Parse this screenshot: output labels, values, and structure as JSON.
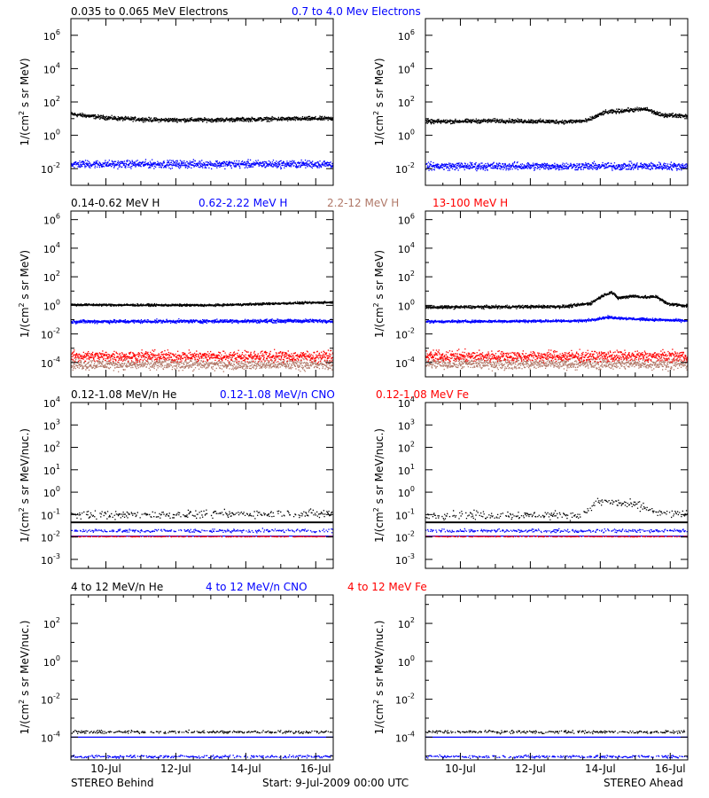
{
  "colors": {
    "black": "#000000",
    "blue": "#0000ff",
    "tan": "#b07868",
    "red": "#ff0000"
  },
  "row_titles": [
    [
      {
        "text": "0.035 to 0.065 MeV Electrons",
        "color": "black"
      },
      {
        "text": "0.7 to 4.0 Mev Electrons",
        "color": "blue"
      }
    ],
    [
      {
        "text": "0.14-0.62 MeV H",
        "color": "black"
      },
      {
        "text": "0.62-2.22 MeV H",
        "color": "blue"
      },
      {
        "text": "2.2-12 MeV H",
        "color": "tan"
      },
      {
        "text": "13-100 MeV H",
        "color": "red"
      }
    ],
    [
      {
        "text": "0.12-1.08 MeV/n He",
        "color": "black"
      },
      {
        "text": "0.12-1.08 MeV/n CNO",
        "color": "blue"
      },
      {
        "text": "0.12-1.08 MeV Fe",
        "color": "red"
      }
    ],
    [
      {
        "text": "4 to 12 MeV/n He",
        "color": "black"
      },
      {
        "text": "4 to 12 MeV/n CNO",
        "color": "blue"
      },
      {
        "text": "4 to 12 MeV Fe",
        "color": "red"
      }
    ]
  ],
  "footer": {
    "left": "STEREO Behind",
    "center": "Start:  9-Jul-2009 00:00 UTC",
    "right": "STEREO Ahead"
  },
  "chart_data": [
    {
      "type": "scatter",
      "panel": "row1-left",
      "ylabel": "1/(cm2 s sr MeV)",
      "ylog": true,
      "ylim_exp": [
        -3,
        7
      ],
      "ytick_exps": [
        -2,
        0,
        2,
        4,
        6
      ],
      "xlim_days": [
        0,
        7.5
      ],
      "x_ticks": [
        "10-Jul",
        "12-Jul",
        "14-Jul",
        "16-Jul"
      ],
      "series": [
        {
          "name": "0.035 to 0.065 MeV Electrons",
          "color": "black",
          "profile": [
            [
              0,
              20
            ],
            [
              0.7,
              14
            ],
            [
              1.3,
              11
            ],
            [
              2.5,
              9
            ],
            [
              4,
              9
            ],
            [
              5.5,
              10
            ],
            [
              7.5,
              11
            ]
          ],
          "scatter": 0.08
        },
        {
          "name": "0.7 to 4.0 Mev Electrons",
          "color": "blue",
          "profile": [
            [
              0,
              0.02
            ],
            [
              7.5,
              0.02
            ]
          ],
          "scatter": 0.15
        }
      ]
    },
    {
      "type": "scatter",
      "panel": "row1-right",
      "ylabel": "1/(cm2 s sr MeV)",
      "ylog": true,
      "ylim_exp": [
        -3,
        7
      ],
      "ytick_exps": [
        -2,
        0,
        2,
        4,
        6
      ],
      "xlim_days": [
        0,
        7.5
      ],
      "x_ticks": [
        "10-Jul",
        "12-Jul",
        "14-Jul",
        "16-Jul"
      ],
      "series": [
        {
          "name": "0.035 to 0.065 MeV Electrons",
          "color": "black",
          "profile": [
            [
              0,
              7
            ],
            [
              2,
              8
            ],
            [
              4,
              7
            ],
            [
              4.6,
              8
            ],
            [
              5.1,
              25
            ],
            [
              5.8,
              35
            ],
            [
              6.3,
              40
            ],
            [
              6.7,
              18
            ],
            [
              7.5,
              16
            ]
          ],
          "scatter": 0.08
        },
        {
          "name": "0.7 to 4.0 Mev Electrons",
          "color": "blue",
          "profile": [
            [
              0,
              0.015
            ],
            [
              7.5,
              0.015
            ]
          ],
          "scatter": 0.15
        }
      ]
    },
    {
      "type": "scatter",
      "panel": "row2-left",
      "ylabel": "1/(cm2 s sr MeV)",
      "ylog": true,
      "ylim_exp": [
        -5,
        6.6
      ],
      "ytick_exps": [
        -4,
        -2,
        0,
        2,
        4,
        6
      ],
      "xlim_days": [
        0,
        7.5
      ],
      "x_ticks": [
        "10-Jul",
        "12-Jul",
        "14-Jul",
        "16-Jul"
      ],
      "series": [
        {
          "name": "0.14-0.62 MeV H",
          "color": "black",
          "profile": [
            [
              0,
              1.2
            ],
            [
              4,
              1.1
            ],
            [
              6,
              1.5
            ],
            [
              7.5,
              1.8
            ]
          ],
          "scatter": 0.05
        },
        {
          "name": "0.62-2.22 MeV H",
          "color": "blue",
          "profile": [
            [
              0,
              0.08
            ],
            [
              7.5,
              0.09
            ]
          ],
          "scatter": 0.08
        },
        {
          "name": "2.2-12 MeV H",
          "color": "tan",
          "profile": [
            [
              0,
              8e-05
            ],
            [
              7.5,
              8e-05
            ]
          ],
          "scatter": 0.25
        },
        {
          "name": "13-100 MeV H",
          "color": "red",
          "profile": [
            [
              0,
              0.0003
            ],
            [
              7.5,
              0.0003
            ]
          ],
          "scatter": 0.25
        }
      ]
    },
    {
      "type": "scatter",
      "panel": "row2-right",
      "ylabel": "1/(cm2 s sr MeV)",
      "ylog": true,
      "ylim_exp": [
        -5,
        6.6
      ],
      "ytick_exps": [
        -4,
        -2,
        0,
        2,
        4,
        6
      ],
      "xlim_days": [
        0,
        7.5
      ],
      "x_ticks": [
        "10-Jul",
        "12-Jul",
        "14-Jul",
        "16-Jul"
      ],
      "series": [
        {
          "name": "0.14-0.62 MeV H",
          "color": "black",
          "profile": [
            [
              0,
              0.8
            ],
            [
              4,
              0.9
            ],
            [
              4.7,
              1.5
            ],
            [
              5.1,
              6
            ],
            [
              5.3,
              9
            ],
            [
              5.5,
              3.5
            ],
            [
              5.9,
              5
            ],
            [
              6.3,
              4
            ],
            [
              6.6,
              4.5
            ],
            [
              6.9,
              1.4
            ],
            [
              7.5,
              1
            ]
          ],
          "scatter": 0.07
        },
        {
          "name": "0.62-2.22 MeV H",
          "color": "blue",
          "profile": [
            [
              0,
              0.08
            ],
            [
              4.5,
              0.09
            ],
            [
              5.2,
              0.16
            ],
            [
              6,
              0.12
            ],
            [
              7.5,
              0.09
            ]
          ],
          "scatter": 0.06
        },
        {
          "name": "2.2-12 MeV H",
          "color": "tan",
          "profile": [
            [
              0,
              9e-05
            ],
            [
              7.5,
              9e-05
            ]
          ],
          "scatter": 0.25
        },
        {
          "name": "13-100 MeV H",
          "color": "red",
          "profile": [
            [
              0,
              0.0003
            ],
            [
              7.5,
              0.0003
            ]
          ],
          "scatter": 0.25
        }
      ]
    },
    {
      "type": "scatter",
      "panel": "row3-left",
      "ylabel": "1/(cm2 s sr MeV/nuc.)",
      "ylog": true,
      "ylim_exp": [
        -3.4,
        4
      ],
      "ytick_exps": [
        -3,
        -2,
        -1,
        0,
        1,
        2,
        3,
        4
      ],
      "xlim_days": [
        0,
        7.5
      ],
      "x_ticks": [
        "10-Jul",
        "12-Jul",
        "14-Jul",
        "16-Jul"
      ],
      "series": [
        {
          "name": "0.12-1.08 MeV/n He",
          "color": "black",
          "profile": [
            [
              0,
              0.1
            ],
            [
              7.5,
              0.12
            ]
          ],
          "scatter": 0.12,
          "sparse": true,
          "floor": 0.045
        },
        {
          "name": "0.12-1.08 MeV/n CNO",
          "color": "blue",
          "profile": [
            [
              0,
              0.02
            ],
            [
              7.5,
              0.02
            ]
          ],
          "scatter": 0.05,
          "sparse": true,
          "floor": 0.011
        },
        {
          "name": "0.12-1.08 MeV Fe",
          "color": "red",
          "profile": [
            [
              0,
              0.011
            ],
            [
              7.5,
              0.011
            ]
          ],
          "scatter": 0.01,
          "sparse": true
        }
      ]
    },
    {
      "type": "scatter",
      "panel": "row3-right",
      "ylabel": "1/(cm2 s sr MeV/nuc.)",
      "ylog": true,
      "ylim_exp": [
        -3.4,
        4
      ],
      "ytick_exps": [
        -3,
        -2,
        -1,
        0,
        1,
        2,
        3,
        4
      ],
      "xlim_days": [
        0,
        7.5
      ],
      "x_ticks": [
        "10-Jul",
        "12-Jul",
        "14-Jul",
        "16-Jul"
      ],
      "series": [
        {
          "name": "0.12-1.08 MeV/n He",
          "color": "black",
          "profile": [
            [
              0,
              0.1
            ],
            [
              4.5,
              0.1
            ],
            [
              4.9,
              0.4
            ],
            [
              5.6,
              0.35
            ],
            [
              6.2,
              0.25
            ],
            [
              6.6,
              0.12
            ],
            [
              7.5,
              0.11
            ]
          ],
          "scatter": 0.12,
          "sparse": true,
          "floor": 0.045
        },
        {
          "name": "0.12-1.08 MeV/n CNO",
          "color": "blue",
          "profile": [
            [
              0,
              0.02
            ],
            [
              7.5,
              0.02
            ]
          ],
          "scatter": 0.05,
          "sparse": true,
          "floor": 0.011
        },
        {
          "name": "0.12-1.08 MeV Fe",
          "color": "red",
          "profile": [
            [
              0,
              0.011
            ],
            [
              7.5,
              0.011
            ]
          ],
          "scatter": 0.01,
          "sparse": true
        }
      ]
    },
    {
      "type": "scatter",
      "panel": "row4-left",
      "ylabel": "1/(cm2 s sr MeV/nuc.)",
      "ylog": true,
      "ylim_exp": [
        -5.2,
        3.5
      ],
      "ytick_exps": [
        -4,
        -2,
        0,
        2
      ],
      "xlim_days": [
        0,
        7.5
      ],
      "x_ticks": [
        "10-Jul",
        "12-Jul",
        "14-Jul",
        "16-Jul"
      ],
      "series": [
        {
          "name": "4 to 12 MeV/n He",
          "color": "black",
          "profile": [
            [
              0,
              0.0002
            ],
            [
              7.5,
              0.0002
            ]
          ],
          "scatter": 0.05,
          "sparse": true
        },
        {
          "name": "4 to 12 MeV/n CNO",
          "color": "blue",
          "profile": [
            [
              0,
              1e-05
            ],
            [
              7.5,
              1e-05
            ]
          ],
          "scatter": 0.05,
          "sparse": true,
          "floor": 0.0001
        },
        {
          "name": "4 to 12 MeV Fe",
          "color": "red",
          "profile": [],
          "scatter": 0
        }
      ]
    },
    {
      "type": "scatter",
      "panel": "row4-right",
      "ylabel": "1/(cm2 s sr MeV/nuc.)",
      "ylog": true,
      "ylim_exp": [
        -5.2,
        3.5
      ],
      "ytick_exps": [
        -4,
        -2,
        0,
        2
      ],
      "xlim_days": [
        0,
        7.5
      ],
      "x_ticks": [
        "10-Jul",
        "12-Jul",
        "14-Jul",
        "16-Jul"
      ],
      "series": [
        {
          "name": "4 to 12 MeV/n He",
          "color": "black",
          "profile": [
            [
              0,
              0.0002
            ],
            [
              7.5,
              0.0002
            ]
          ],
          "scatter": 0.05,
          "sparse": true
        },
        {
          "name": "4 to 12 MeV/n CNO",
          "color": "blue",
          "profile": [
            [
              0,
              1e-05
            ],
            [
              7.5,
              1e-05
            ]
          ],
          "scatter": 0.05,
          "sparse": true,
          "floor": 0.0001
        },
        {
          "name": "4 to 12 MeV Fe",
          "color": "red",
          "profile": [],
          "scatter": 0
        }
      ]
    }
  ]
}
